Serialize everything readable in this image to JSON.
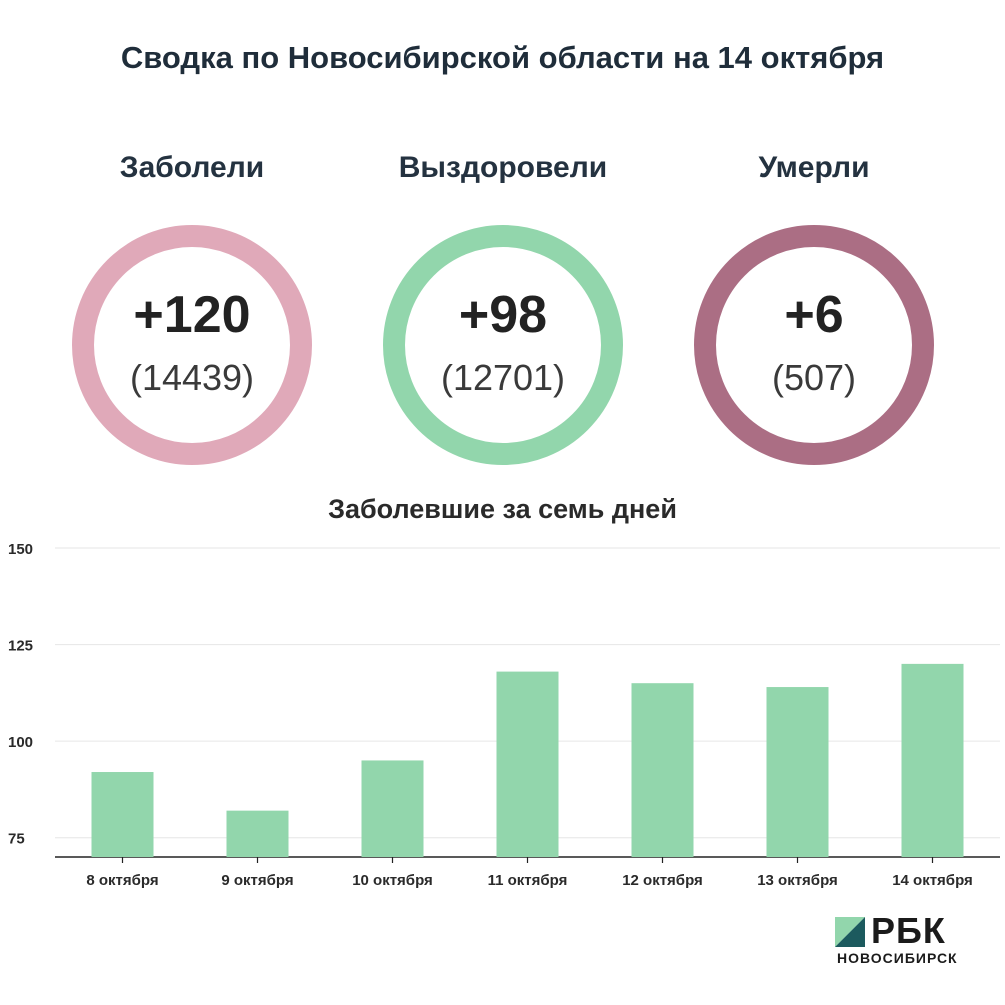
{
  "title": "Сводка по Новосибирской области на 14 октября",
  "stats": [
    {
      "label": "Заболели",
      "value": "+120",
      "total": "(14439)",
      "color": "#e0a9b9"
    },
    {
      "label": "Выздоровели",
      "value": "+98",
      "total": "(12701)",
      "color": "#92d6ac"
    },
    {
      "label": "Умерли",
      "value": "+6",
      "total": "(507)",
      "color": "#ab6e84"
    }
  ],
  "chart_data": {
    "type": "bar",
    "title": "Заболевшие за семь дней",
    "categories": [
      "8 октября",
      "9 октября",
      "10 октября",
      "11 октября",
      "12 октября",
      "13 октября",
      "14 октября"
    ],
    "values": [
      92,
      82,
      95,
      118,
      115,
      114,
      120
    ],
    "ylim": [
      70,
      150
    ],
    "yticks": [
      75,
      100,
      125,
      150
    ],
    "grid": true,
    "bar_color": "#92d6ac",
    "xlabel": "",
    "ylabel": ""
  },
  "logo": {
    "name": "РБК",
    "sub": "НОВОСИБИРСК",
    "mark_dark": "#1c5a5e",
    "mark_light": "#92d6ac"
  }
}
